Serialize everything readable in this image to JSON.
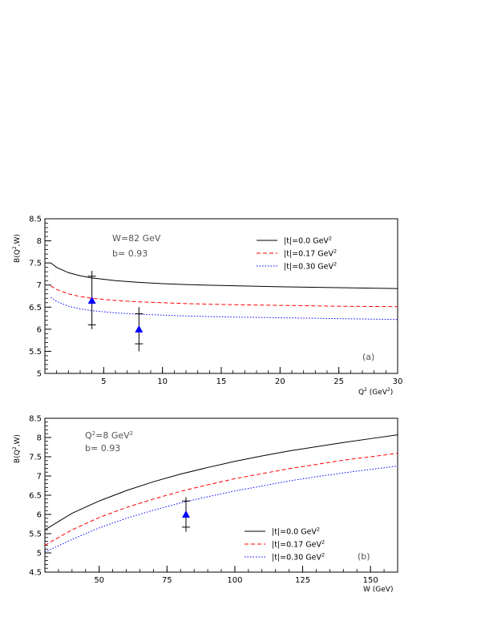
{
  "chart_data": [
    {
      "type": "line",
      "panel_label": "(a)",
      "xlabel": "Q",
      "xlabel_sup": "2",
      "xlabel_rest": " (GeV",
      "xlabel_sup2": "2",
      "xlabel_end": ")",
      "ylabel": "B(Q",
      "ylabel_sup": "2",
      "ylabel_end": ",W)",
      "xlim": [
        0,
        30
      ],
      "ylim": [
        5,
        8.5
      ],
      "xticks": [
        5,
        10,
        15,
        20,
        25,
        30
      ],
      "yticks": [
        5,
        5.5,
        6,
        6.5,
        7,
        7.5,
        8,
        8.5
      ],
      "annotations": [
        "W=82 GeV",
        "b= 0.93"
      ],
      "legend_position": "top-right",
      "series": [
        {
          "name": "|t|=0.0 GeV",
          "name_sup": "2",
          "style": "solid",
          "color": "#000000",
          "x": [
            0.5,
            1,
            2,
            3,
            4,
            6,
            8,
            10,
            12,
            15,
            20,
            25,
            30
          ],
          "y": [
            7.5,
            7.4,
            7.28,
            7.21,
            7.16,
            7.1,
            7.06,
            7.03,
            7.01,
            6.99,
            6.96,
            6.94,
            6.92
          ]
        },
        {
          "name": "|t|=0.17 GeV",
          "name_sup": "2",
          "style": "dashed",
          "color": "#ff0000",
          "x": [
            0.5,
            1,
            2,
            3,
            4,
            6,
            8,
            10,
            12,
            15,
            20,
            25,
            30
          ],
          "y": [
            6.98,
            6.9,
            6.8,
            6.74,
            6.7,
            6.65,
            6.62,
            6.6,
            6.58,
            6.56,
            6.54,
            6.52,
            6.51
          ]
        },
        {
          "name": "|t|=0.30 GeV",
          "name_sup": "2",
          "style": "dotted",
          "color": "#0000ff",
          "x": [
            0.5,
            1,
            2,
            3,
            4,
            6,
            8,
            10,
            12,
            15,
            20,
            25,
            30
          ],
          "y": [
            6.72,
            6.63,
            6.52,
            6.46,
            6.42,
            6.37,
            6.34,
            6.32,
            6.3,
            6.28,
            6.26,
            6.24,
            6.22
          ]
        }
      ],
      "data_points": [
        {
          "x": 4,
          "y": 6.65,
          "err_low": 6.0,
          "err_high": 7.32,
          "ticks": [
            6.1,
            7.2
          ]
        },
        {
          "x": 8,
          "y": 6.0,
          "err_low": 5.5,
          "err_high": 6.5,
          "ticks": [
            5.67,
            6.35
          ]
        }
      ]
    },
    {
      "type": "line",
      "panel_label": "(b)",
      "xlabel": "W (GeV)",
      "ylabel": "B(Q",
      "ylabel_sup": "2",
      "ylabel_end": ",W)",
      "xlim": [
        30,
        160
      ],
      "ylim": [
        4.5,
        8.5
      ],
      "xticks": [
        50,
        75,
        100,
        125,
        150
      ],
      "yticks": [
        4.5,
        5,
        5.5,
        6,
        6.5,
        7,
        7.5,
        8,
        8.5
      ],
      "annotations": [
        "Q",
        "=8 GeV",
        "b= 0.93"
      ],
      "annotation_sups": [
        "2",
        "2"
      ],
      "legend_position": "bottom-right",
      "series": [
        {
          "name": "|t|=0.0 GeV",
          "name_sup": "2",
          "style": "solid",
          "color": "#000000",
          "x": [
            30,
            40,
            50,
            60,
            70,
            80,
            90,
            100,
            110,
            120,
            130,
            140,
            150,
            160
          ],
          "y": [
            5.6,
            6.03,
            6.35,
            6.62,
            6.85,
            7.05,
            7.22,
            7.38,
            7.52,
            7.65,
            7.76,
            7.87,
            7.97,
            8.07
          ]
        },
        {
          "name": "|t|=0.17 GeV",
          "name_sup": "2",
          "style": "dashed",
          "color": "#ff0000",
          "x": [
            30,
            40,
            50,
            60,
            70,
            80,
            90,
            100,
            110,
            120,
            130,
            140,
            150,
            160
          ],
          "y": [
            5.2,
            5.6,
            5.92,
            6.18,
            6.4,
            6.6,
            6.77,
            6.93,
            7.06,
            7.19,
            7.3,
            7.41,
            7.5,
            7.59
          ]
        },
        {
          "name": "|t|=0.30 GeV",
          "name_sup": "2",
          "style": "dotted",
          "color": "#0000ff",
          "x": [
            30,
            40,
            50,
            60,
            70,
            80,
            90,
            100,
            110,
            120,
            130,
            140,
            150,
            160
          ],
          "y": [
            5.02,
            5.35,
            5.65,
            5.9,
            6.11,
            6.3,
            6.46,
            6.61,
            6.74,
            6.87,
            6.98,
            7.08,
            7.17,
            7.26
          ]
        }
      ],
      "data_points": [
        {
          "x": 82,
          "y": 6.0,
          "err_low": 5.55,
          "err_high": 6.45,
          "ticks": [
            5.67,
            6.35
          ]
        }
      ]
    }
  ]
}
